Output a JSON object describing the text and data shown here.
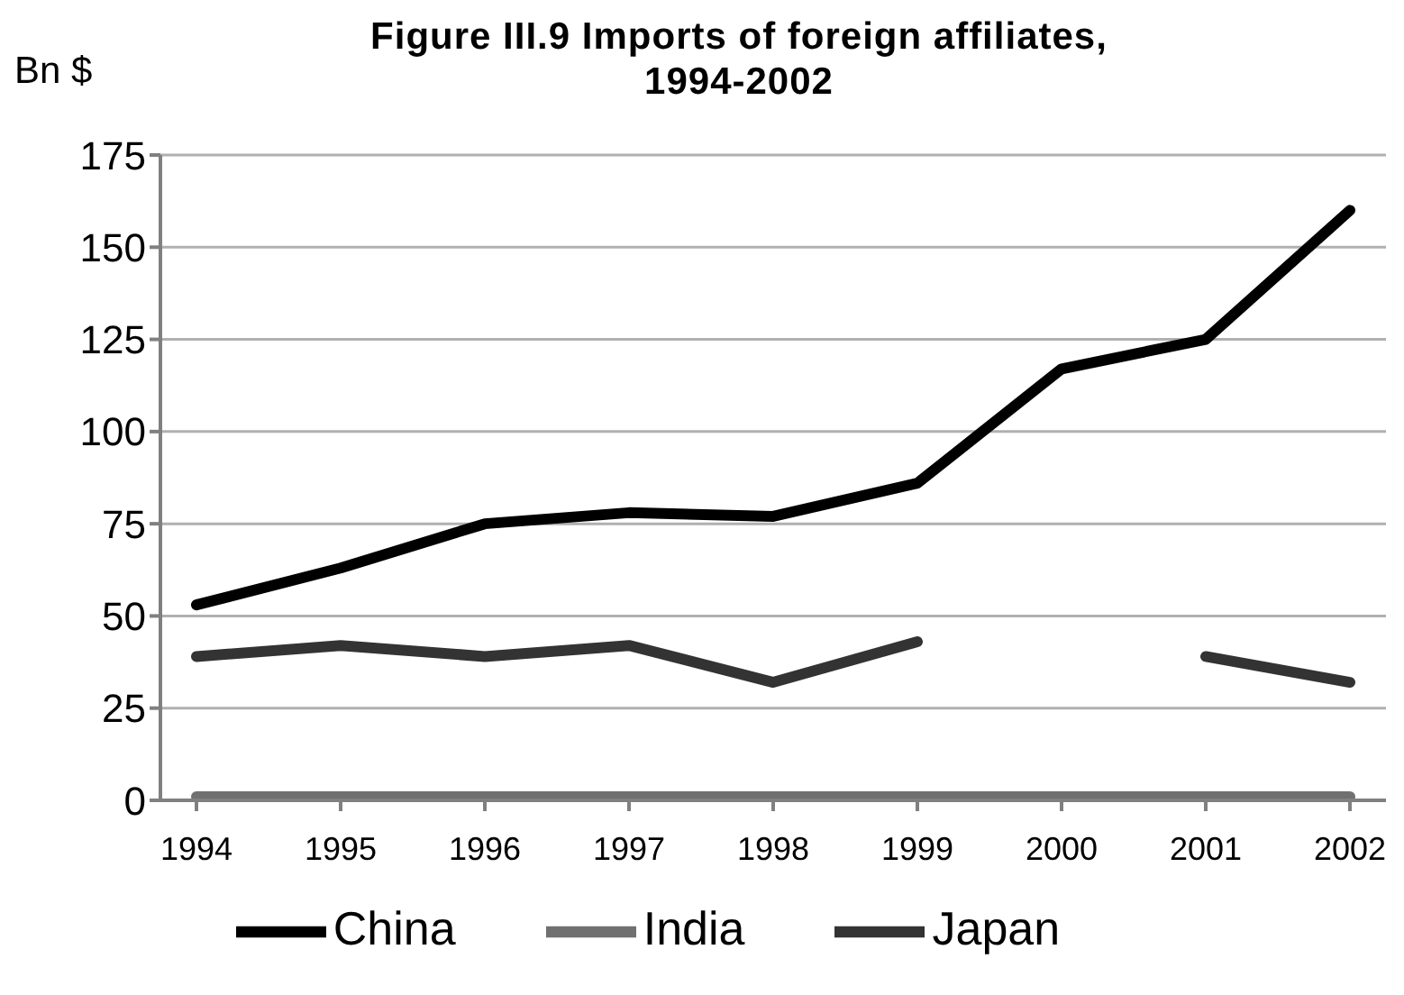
{
  "chart_data": {
    "type": "line",
    "title": "Figure III.9 Imports of foreign affiliates, 1994-2002",
    "ylabel": "Bn $",
    "categories": [
      "1994",
      "1995",
      "1996",
      "1997",
      "1998",
      "1999",
      "2000",
      "2001",
      "2002"
    ],
    "series": [
      {
        "name": "China",
        "color": "#000000",
        "values": [
          53,
          63,
          75,
          78,
          77,
          86,
          117,
          125,
          160
        ]
      },
      {
        "name": "India",
        "color": "#707070",
        "values": [
          1,
          1,
          1,
          1,
          1,
          1,
          1,
          1,
          1
        ]
      },
      {
        "name": "Japan",
        "color": "#333333",
        "values": [
          39,
          42,
          39,
          42,
          32,
          43,
          null,
          39,
          32
        ]
      }
    ],
    "ylim": [
      0,
      175
    ],
    "yticks": [
      0,
      25,
      50,
      75,
      100,
      125,
      150,
      175
    ],
    "grid": "y",
    "legend": "bottom",
    "marker": "none",
    "line_style": "solid"
  }
}
